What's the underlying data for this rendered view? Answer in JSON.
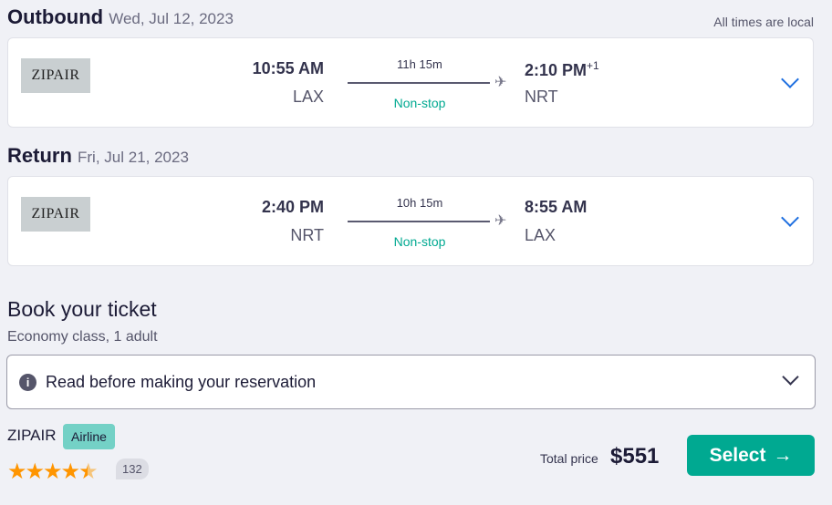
{
  "outbound": {
    "title": "Outbound",
    "date": "Wed, Jul 12, 2023",
    "airline_logo": "ZIPAIR",
    "dep_time": "10:55 AM",
    "dep_airport": "LAX",
    "duration": "11h 15m",
    "stops": "Non-stop",
    "arr_time": "2:10 PM",
    "arr_offset": "+1",
    "arr_airport": "NRT"
  },
  "times_note": "All times are local",
  "return": {
    "title": "Return",
    "date": "Fri, Jul 21, 2023",
    "airline_logo": "ZIPAIR",
    "dep_time": "2:40 PM",
    "dep_airport": "NRT",
    "duration": "10h 15m",
    "stops": "Non-stop",
    "arr_time": "8:55 AM",
    "arr_airport": "LAX"
  },
  "booking": {
    "title": "Book your ticket",
    "subtitle": "Economy class, 1 adult",
    "notice": "Read before making your reservation",
    "provider": "ZIPAIR",
    "provider_badge": "Airline",
    "rating": 4.5,
    "reviews": "132",
    "total_label": "Total price",
    "total": "$551",
    "select_label": "Select",
    "accent": "#00a991"
  }
}
